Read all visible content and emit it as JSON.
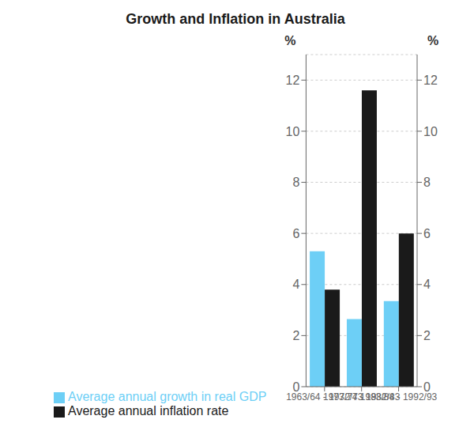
{
  "chart_data": {
    "type": "bar",
    "title": "Growth and Inflation in Australia",
    "categories": [
      "1963/64 - 1972/73",
      "1973/74 - 1982/83",
      "1983/84 - 1992/93"
    ],
    "series": [
      {
        "name": "Average annual growth in real GDP",
        "color": "#6dcff6",
        "values": [
          5.3,
          2.65,
          3.35
        ]
      },
      {
        "name": "Average annual inflation rate",
        "color": "#1a1a1a",
        "values": [
          3.8,
          11.6,
          6.0
        ]
      }
    ],
    "ylim": [
      0,
      13
    ],
    "yticks": [
      0,
      2,
      4,
      6,
      8,
      10,
      12
    ],
    "y2lim": [
      0,
      13
    ],
    "y2ticks": [
      0,
      2,
      4,
      6,
      8,
      10,
      12
    ],
    "ylabel": "%",
    "y2label": "%",
    "grid": true,
    "legend": "lower left"
  }
}
